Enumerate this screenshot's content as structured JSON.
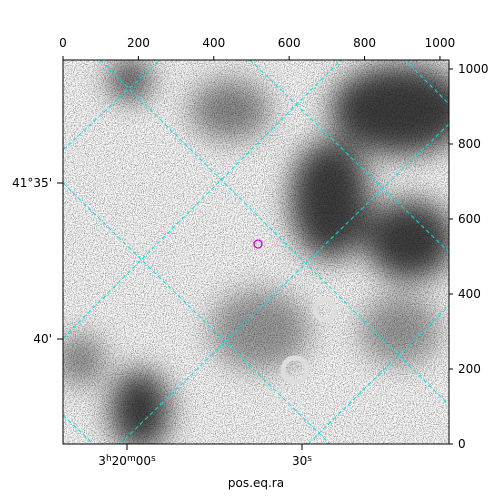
{
  "chart_data": {
    "type": "image",
    "xlabel": "pos.eq.ra",
    "xlim": [
      0,
      1024
    ],
    "xticks": [
      0,
      200,
      400,
      600,
      800,
      1000
    ],
    "ylim": [
      0,
      1024
    ],
    "yticks": [
      0,
      200,
      400,
      600,
      800,
      1000
    ],
    "ra_tick_labels": [
      "3h20m00s",
      "30s"
    ],
    "dec_tick_labels": [
      "41°35'",
      "40'"
    ],
    "grid_color": "#00e5e5",
    "marker_color": "#cc00cc"
  }
}
